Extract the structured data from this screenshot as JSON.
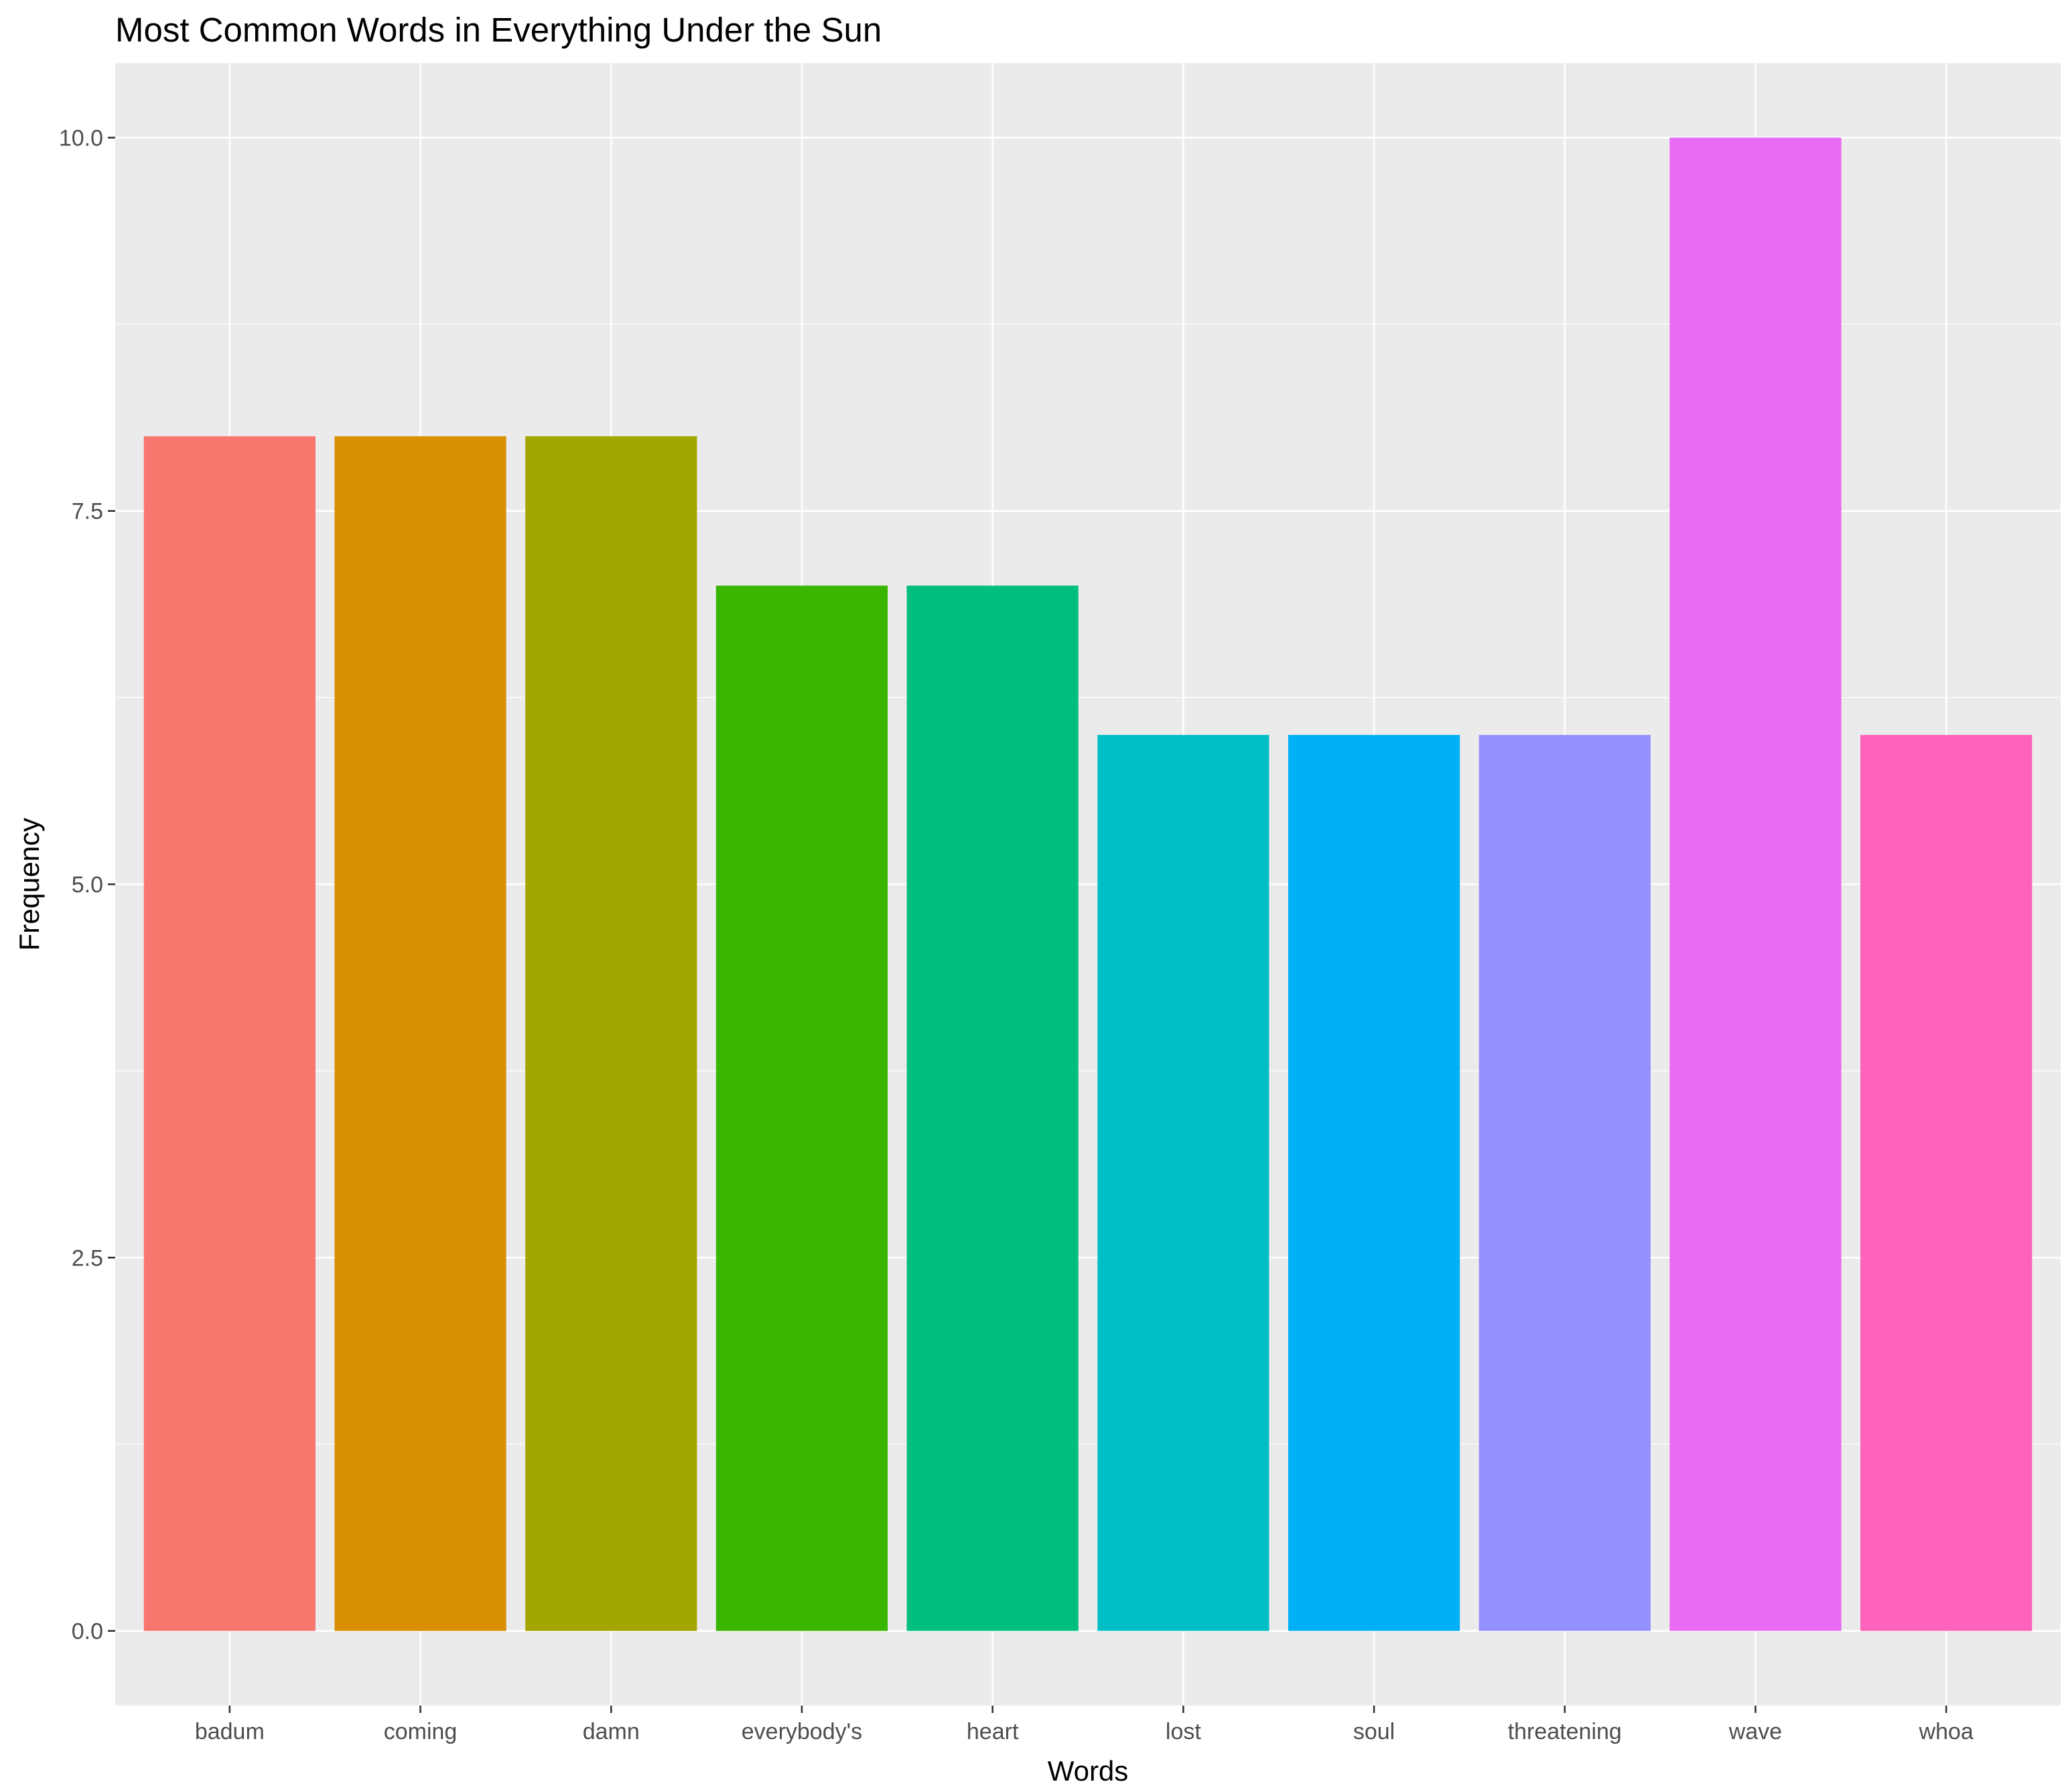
{
  "chart_data": {
    "type": "bar",
    "title": "Most Common Words in Everything Under the Sun",
    "xlabel": "Words",
    "ylabel": "Frequency",
    "categories": [
      "badum",
      "coming",
      "damn",
      "everybody's",
      "heart",
      "lost",
      "soul",
      "threatening",
      "wave",
      "whoa"
    ],
    "values": [
      8,
      8,
      8,
      7,
      7,
      6,
      6,
      6,
      10,
      6
    ],
    "colors": [
      "#F8766D",
      "#D89000",
      "#A3A500",
      "#39B600",
      "#00BF7D",
      "#00BFC4",
      "#00B0F6",
      "#9590FF",
      "#E76BF3",
      "#FF62BC"
    ],
    "ylim": [
      -0.5,
      10.5
    ],
    "yticks": [
      0,
      2.5,
      5,
      7.5,
      10
    ],
    "ytick_labels": [
      "0.0",
      "2.5",
      "5.0",
      "7.5",
      "10.0"
    ],
    "grid": true,
    "legend": "none",
    "panel_color": "#EBEBEB",
    "grid_color": "#FFFFFF"
  }
}
